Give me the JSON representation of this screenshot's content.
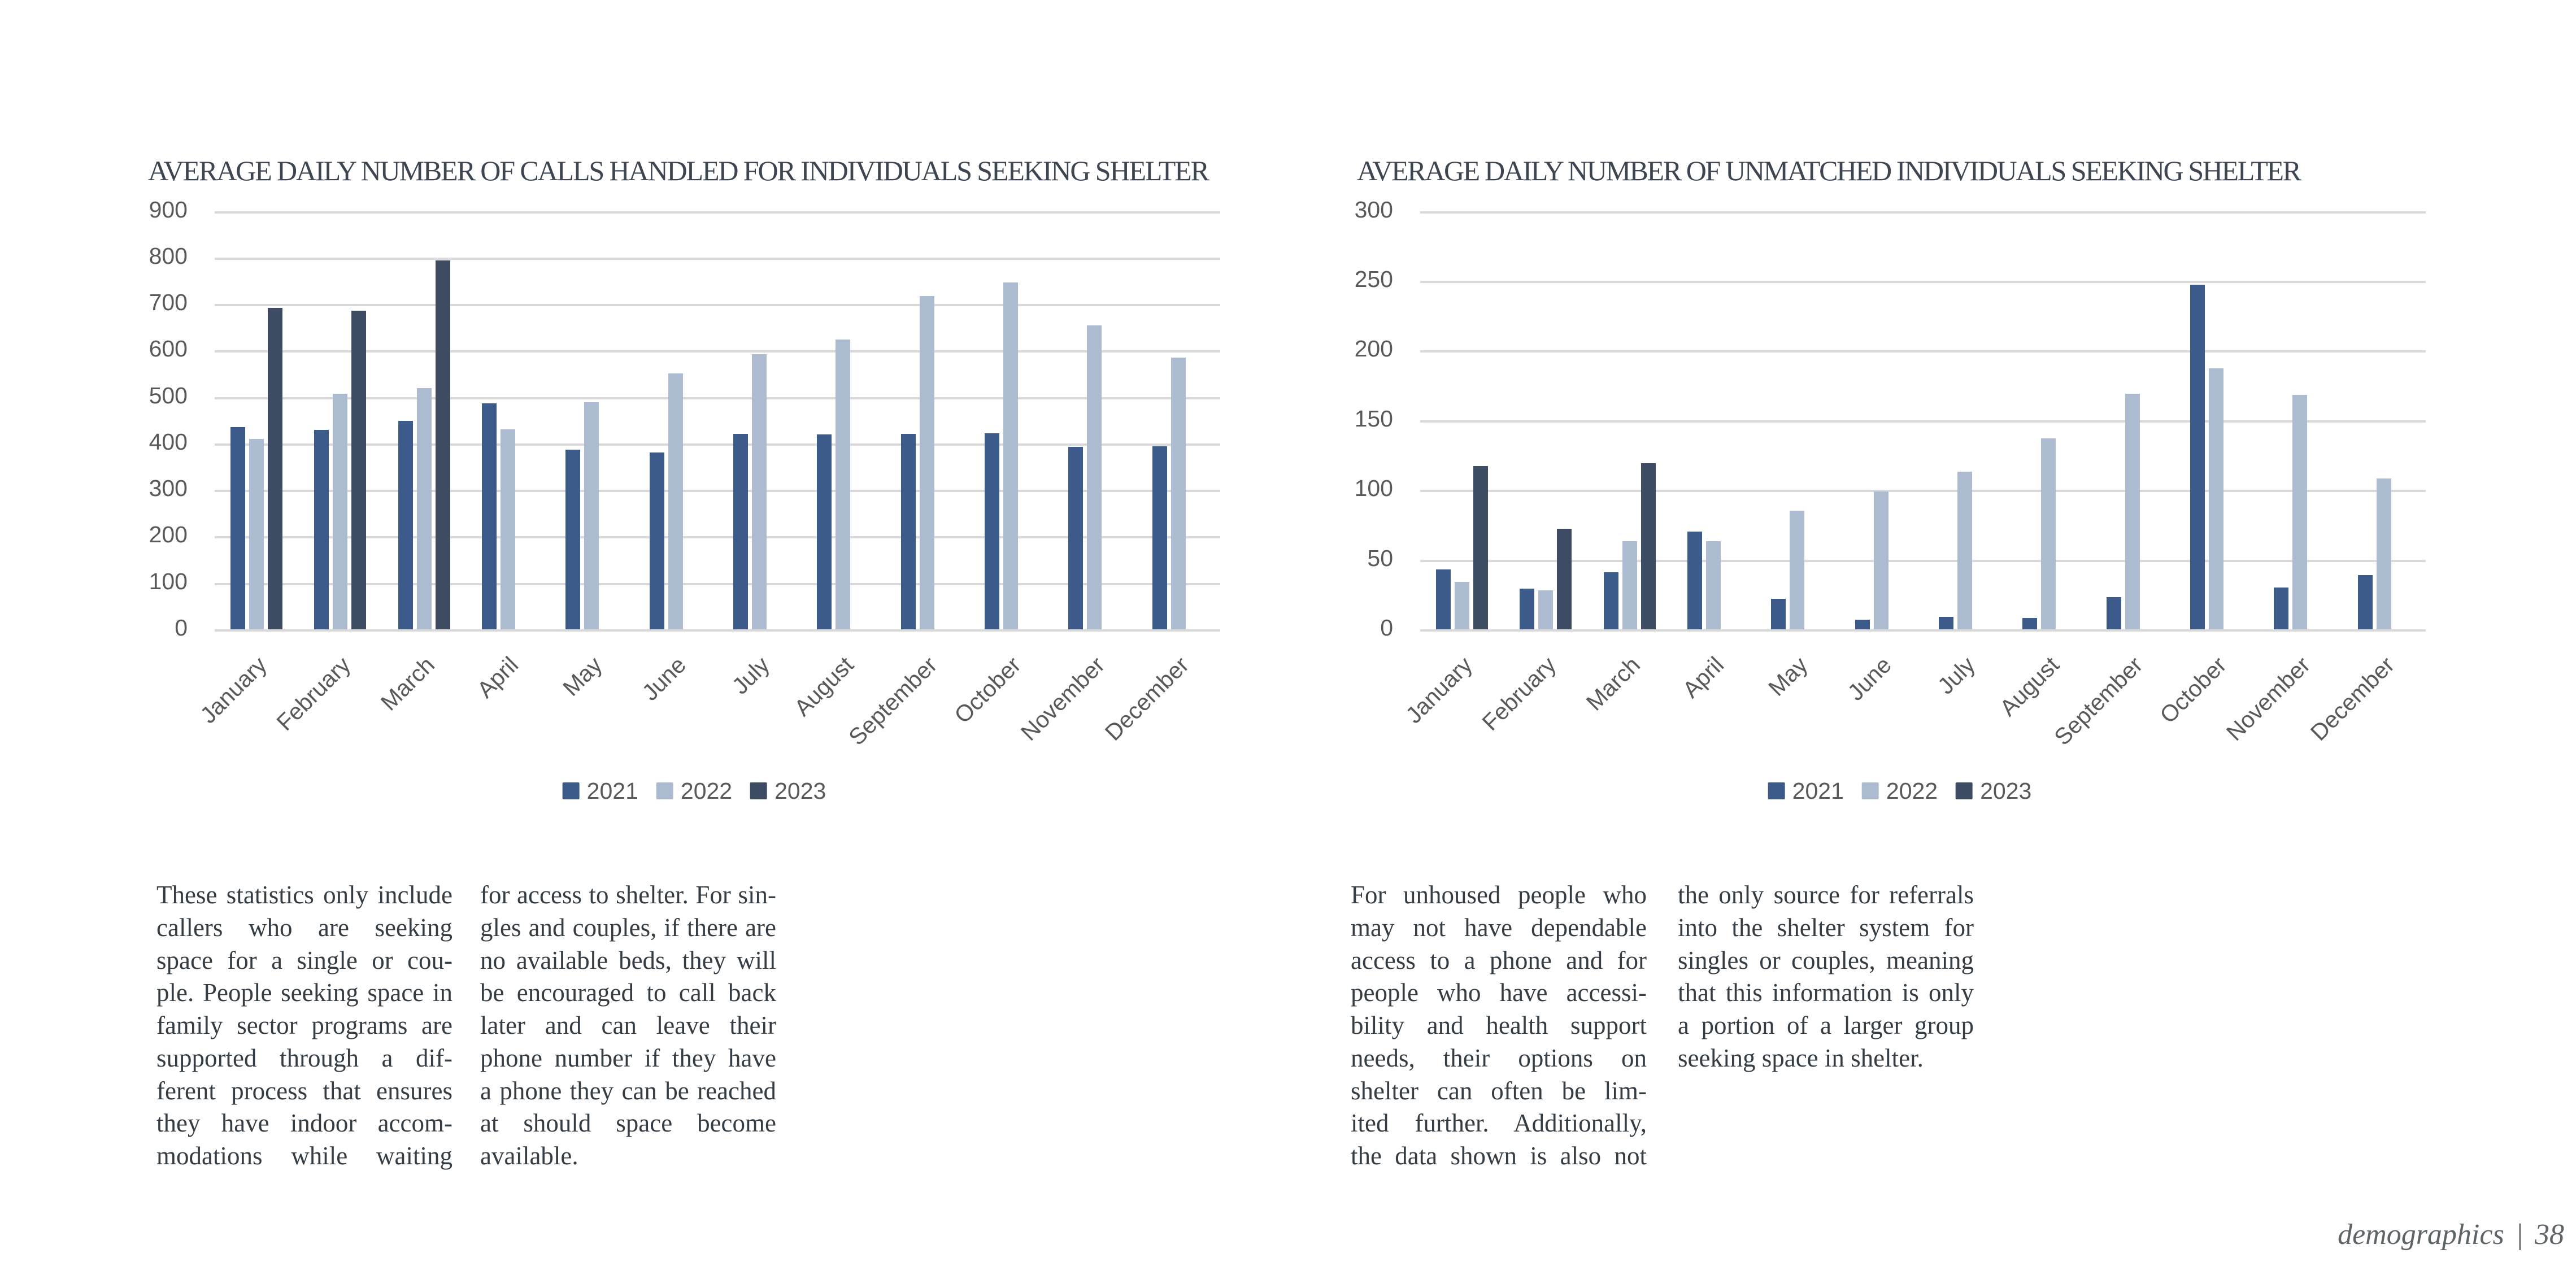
{
  "chart_data": [
    {
      "type": "bar",
      "title": "AVERAGE DAILY NUMBER OF CALLS HANDLED FOR INDIVIDUALS SEEKING SHELTER",
      "categories": [
        "January",
        "February",
        "March",
        "April",
        "May",
        "June",
        "July",
        "August",
        "September",
        "October",
        "November",
        "December"
      ],
      "series": [
        {
          "name": "2021",
          "color": "#3c5b8b",
          "values": [
            435,
            429,
            448,
            486,
            386,
            381,
            421,
            419,
            420,
            422,
            392,
            394
          ]
        },
        {
          "name": "2022",
          "color": "#adbbd0",
          "values": [
            409,
            507,
            519,
            430,
            488,
            551,
            592,
            623,
            717,
            746,
            654,
            585
          ]
        },
        {
          "name": "2023",
          "color": "#3d4c63",
          "values": [
            692,
            685,
            794,
            null,
            null,
            null,
            null,
            null,
            null,
            null,
            null,
            null
          ]
        }
      ],
      "ylim": [
        0,
        900
      ],
      "ytick_step": 100,
      "grid": true,
      "legend_position": "bottom",
      "xlabel": "",
      "ylabel": ""
    },
    {
      "type": "bar",
      "title": "AVERAGE DAILY NUMBER OF UNMATCHED INDIVIDUALS SEEKING SHELTER",
      "categories": [
        "January",
        "February",
        "March",
        "April",
        "May",
        "June",
        "July",
        "August",
        "September",
        "October",
        "November",
        "December"
      ],
      "series": [
        {
          "name": "2021",
          "color": "#3c5b8b",
          "values": [
            43,
            29,
            41,
            70,
            22,
            7,
            9,
            8,
            23,
            247,
            30,
            39
          ]
        },
        {
          "name": "2022",
          "color": "#adbbd0",
          "values": [
            34,
            28,
            63,
            63,
            85,
            99,
            113,
            137,
            169,
            187,
            168,
            108
          ]
        },
        {
          "name": "2023",
          "color": "#3d4c63",
          "values": [
            117,
            72,
            119,
            null,
            null,
            null,
            null,
            null,
            null,
            null,
            null,
            null
          ]
        }
      ],
      "ylim": [
        0,
        300
      ],
      "ytick_step": 50,
      "grid": true,
      "legend_position": "bottom",
      "xlabel": "",
      "ylabel": ""
    }
  ],
  "text_blocks": [
    {
      "columns": [
        {
          "justify_last": true,
          "lines": [
            "These statistics only include",
            "callers who are seeking",
            "space for a single or cou-",
            "ple. People seeking space in",
            "family sector programs are",
            "supported through a dif-",
            "ferent process that ensures",
            "they have indoor accom-",
            "modations while waiting"
          ]
        },
        {
          "justify_last": false,
          "lines": [
            "for access to shelter. For sin-",
            "gles and couples, if there are",
            "no available beds, they will",
            "be encouraged to call back",
            "later and can leave their",
            "phone number if they have",
            "a phone they can be reached",
            "at should space become",
            "available."
          ]
        }
      ]
    },
    {
      "columns": [
        {
          "justify_last": true,
          "lines": [
            "For unhoused people who",
            "may not have dependable",
            "access to a phone and for",
            "people who have accessi-",
            "bility and health support",
            "needs, their options on",
            "shelter can often be lim-",
            "ited further. Additionally,",
            "the data shown is also not"
          ]
        },
        {
          "justify_last": false,
          "lines": [
            "the only source for referrals",
            "into the shelter system for",
            "singles or couples, meaning",
            "that this information is only",
            "a portion of a larger group",
            "seeking space in shelter."
          ]
        }
      ]
    }
  ],
  "footer": {
    "section": "demographics",
    "separator": "|",
    "page_number": "38"
  }
}
